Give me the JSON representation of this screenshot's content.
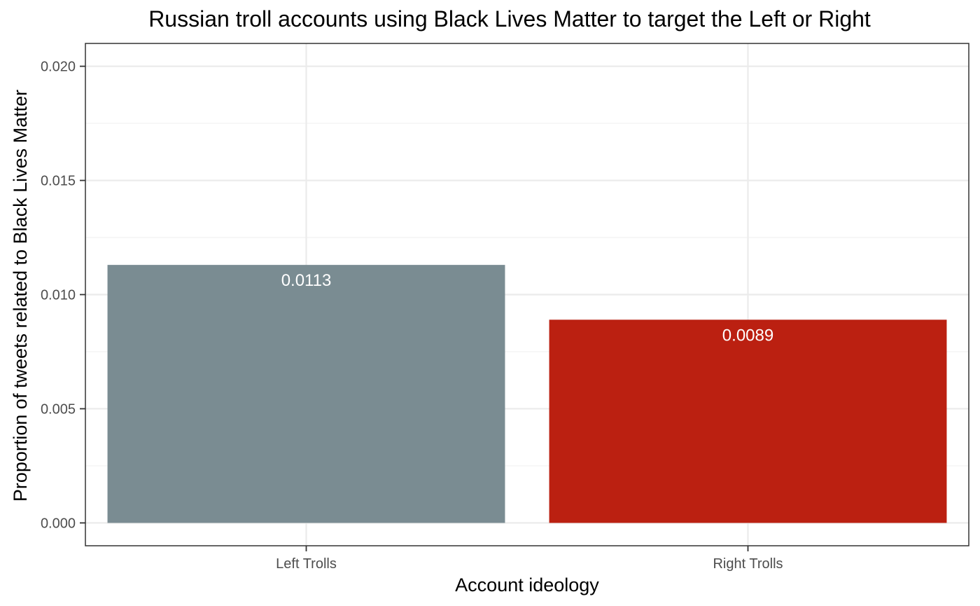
{
  "chart_data": {
    "type": "bar",
    "title": "Russian troll accounts using Black Lives Matter to target the Left or Right",
    "xlabel": "Account ideology",
    "ylabel": "Proportion of tweets related to Black Lives Matter",
    "categories": [
      "Left Trolls",
      "Right Trolls"
    ],
    "values": [
      0.0113,
      0.0089
    ],
    "value_labels": [
      "0.0113",
      "0.0089"
    ],
    "colors": [
      "#7a8c92",
      "#bb2011"
    ],
    "ylim": [
      -0.001,
      0.021
    ],
    "yticks": [
      0.0,
      0.005,
      0.01,
      0.015,
      0.02
    ],
    "ytick_labels": [
      "0.000",
      "0.005",
      "0.010",
      "0.015",
      "0.020"
    ],
    "grid": true,
    "legend": "none",
    "theme": {
      "panel_border": "#333333",
      "grid_major": "#ebebeb",
      "grid_minor": "#f2f2f2",
      "tick_text": "#4d4d4d",
      "bar_label_text": "#ffffff"
    }
  }
}
